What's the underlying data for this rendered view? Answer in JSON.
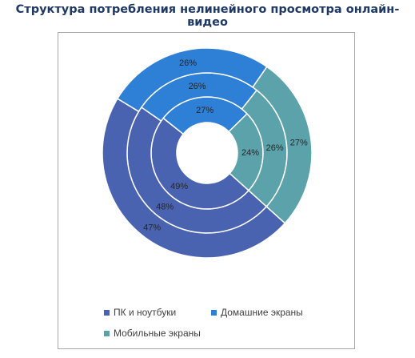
{
  "title": "Структура потребления нелинейного просмотра онлайн-видео",
  "colors": {
    "ПК и ноутбуки": "#4a63b1",
    "Домашние экраны": "#2e7fd6",
    "Мобильные экраны": "#5ba2aa",
    "ring_stroke": "#ffffff"
  },
  "chart_data": {
    "type": "pie",
    "subtype": "multi-ring donut",
    "categories": [
      "ПК и ноутбуки",
      "Домашние экраны",
      "Мобильные экраны"
    ],
    "series": [
      {
        "ring": "inner",
        "values": [
          49,
          27,
          24
        ],
        "labels": [
          "49%",
          "27%",
          "24%"
        ]
      },
      {
        "ring": "middle",
        "values": [
          48,
          26,
          26
        ],
        "labels": [
          "48%",
          "26%",
          "26%"
        ]
      },
      {
        "ring": "outer",
        "values": [
          47,
          26,
          27
        ],
        "labels": [
          "47%",
          "26%",
          "27%"
        ]
      }
    ],
    "legend": {
      "placement": "bottom",
      "items": [
        "ПК и ноутбуки",
        "Домашние экраны",
        "Мобильные экраны"
      ]
    }
  }
}
